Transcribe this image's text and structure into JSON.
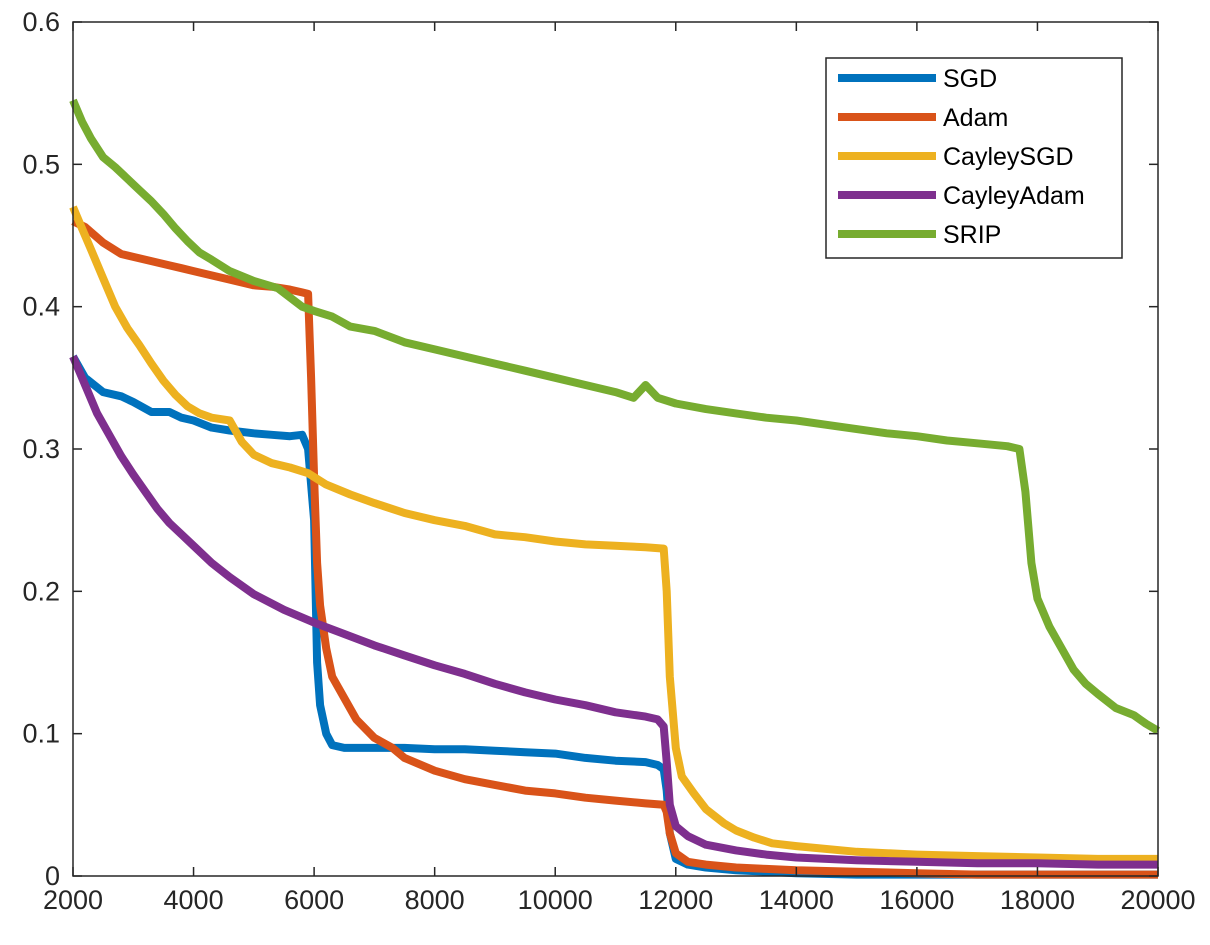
{
  "chart_data": {
    "type": "line",
    "title": "",
    "xlabel": "",
    "ylabel": "",
    "xlim": [
      2000,
      20000
    ],
    "ylim": [
      0,
      0.6
    ],
    "xticks": [
      2000,
      4000,
      6000,
      8000,
      10000,
      12000,
      14000,
      16000,
      18000,
      20000
    ],
    "xtick_labels": [
      "2000",
      "4000",
      "6000",
      "8000",
      "10000",
      "12000",
      "14000",
      "16000",
      "18000",
      "20000"
    ],
    "yticks": [
      0,
      0.1,
      0.2,
      0.3,
      0.4,
      0.5,
      0.6
    ],
    "ytick_labels": [
      "0",
      "0.1",
      "0.2",
      "0.3",
      "0.4",
      "0.5",
      "0.6"
    ],
    "grid": false,
    "legend_location": "top-right",
    "series": [
      {
        "name": "SGD",
        "color": "#0072BD",
        "x": [
          2000,
          2200,
          2500,
          2800,
          3000,
          3300,
          3600,
          3800,
          4000,
          4300,
          4600,
          5000,
          5300,
          5600,
          5800,
          5900,
          6000,
          6050,
          6100,
          6200,
          6300,
          6500,
          6800,
          7000,
          7500,
          8000,
          8500,
          9000,
          9500,
          10000,
          10500,
          11000,
          11500,
          11700,
          11800,
          11850,
          11900,
          12000,
          12200,
          12500,
          13000,
          13500,
          14000,
          15000,
          16000,
          17000,
          18000,
          19000,
          20000
        ],
        "values": [
          0.365,
          0.35,
          0.34,
          0.337,
          0.333,
          0.326,
          0.326,
          0.322,
          0.32,
          0.315,
          0.313,
          0.311,
          0.31,
          0.309,
          0.31,
          0.3,
          0.25,
          0.15,
          0.12,
          0.1,
          0.092,
          0.09,
          0.09,
          0.09,
          0.09,
          0.089,
          0.089,
          0.088,
          0.087,
          0.086,
          0.083,
          0.081,
          0.08,
          0.078,
          0.075,
          0.06,
          0.03,
          0.012,
          0.008,
          0.006,
          0.004,
          0.003,
          0.002,
          0.001,
          0.001,
          0.001,
          0.001,
          0.001,
          0.001
        ]
      },
      {
        "name": "Adam",
        "color": "#D95319",
        "x": [
          2000,
          2200,
          2500,
          2800,
          3000,
          3300,
          3600,
          3800,
          4000,
          4300,
          4600,
          5000,
          5300,
          5600,
          5800,
          5900,
          5950,
          6000,
          6050,
          6100,
          6200,
          6300,
          6500,
          6700,
          7000,
          7300,
          7500,
          8000,
          8500,
          9000,
          9500,
          10000,
          10500,
          11000,
          11500,
          11800,
          11850,
          11900,
          12000,
          12200,
          12500,
          13000,
          13500,
          14000,
          15000,
          16000,
          17000,
          18000,
          19000,
          20000
        ],
        "values": [
          0.46,
          0.456,
          0.445,
          0.437,
          0.435,
          0.432,
          0.429,
          0.427,
          0.425,
          0.422,
          0.419,
          0.415,
          0.414,
          0.412,
          0.41,
          0.409,
          0.35,
          0.28,
          0.22,
          0.19,
          0.16,
          0.14,
          0.125,
          0.11,
          0.097,
          0.09,
          0.083,
          0.074,
          0.068,
          0.064,
          0.06,
          0.058,
          0.055,
          0.053,
          0.051,
          0.05,
          0.045,
          0.03,
          0.016,
          0.01,
          0.008,
          0.006,
          0.005,
          0.004,
          0.003,
          0.002,
          0.001,
          0.001,
          0.001,
          0.001
        ]
      },
      {
        "name": "CayleySGD",
        "color": "#EDB120",
        "x": [
          2000,
          2150,
          2300,
          2500,
          2700,
          2900,
          3100,
          3300,
          3500,
          3700,
          3900,
          4100,
          4300,
          4600,
          4800,
          5000,
          5300,
          5600,
          5900,
          6200,
          6600,
          7000,
          7500,
          8000,
          8500,
          9000,
          9500,
          10000,
          10500,
          11000,
          11500,
          11800,
          11850,
          11900,
          12000,
          12100,
          12300,
          12500,
          12800,
          13000,
          13300,
          13600,
          14000,
          15000,
          16000,
          17000,
          18000,
          19000,
          20000
        ],
        "values": [
          0.47,
          0.455,
          0.44,
          0.42,
          0.4,
          0.385,
          0.373,
          0.36,
          0.348,
          0.338,
          0.33,
          0.325,
          0.322,
          0.32,
          0.305,
          0.296,
          0.29,
          0.287,
          0.283,
          0.275,
          0.268,
          0.262,
          0.255,
          0.25,
          0.246,
          0.24,
          0.238,
          0.235,
          0.233,
          0.232,
          0.231,
          0.23,
          0.2,
          0.14,
          0.09,
          0.07,
          0.058,
          0.047,
          0.037,
          0.032,
          0.027,
          0.023,
          0.021,
          0.017,
          0.015,
          0.014,
          0.013,
          0.012,
          0.012
        ]
      },
      {
        "name": "CayleyAdam",
        "color": "#7E2F8E",
        "x": [
          2000,
          2200,
          2400,
          2600,
          2800,
          3000,
          3200,
          3400,
          3600,
          3800,
          4000,
          4300,
          4600,
          5000,
          5500,
          6000,
          6500,
          7000,
          7500,
          8000,
          8500,
          9000,
          9500,
          10000,
          10500,
          11000,
          11500,
          11700,
          11800,
          11850,
          11900,
          12000,
          12200,
          12500,
          13000,
          13500,
          14000,
          15000,
          16000,
          17000,
          18000,
          19000,
          20000
        ],
        "values": [
          0.365,
          0.345,
          0.325,
          0.31,
          0.295,
          0.282,
          0.27,
          0.258,
          0.248,
          0.24,
          0.232,
          0.22,
          0.21,
          0.198,
          0.187,
          0.178,
          0.17,
          0.162,
          0.155,
          0.148,
          0.142,
          0.135,
          0.129,
          0.124,
          0.12,
          0.115,
          0.112,
          0.11,
          0.105,
          0.08,
          0.05,
          0.035,
          0.028,
          0.022,
          0.018,
          0.015,
          0.013,
          0.011,
          0.01,
          0.009,
          0.009,
          0.008,
          0.008
        ]
      },
      {
        "name": "SRIP",
        "color": "#77AC30",
        "x": [
          2000,
          2150,
          2300,
          2500,
          2700,
          2900,
          3100,
          3300,
          3500,
          3700,
          3900,
          4100,
          4300,
          4600,
          5000,
          5400,
          5800,
          6000,
          6300,
          6600,
          7000,
          7500,
          8000,
          8500,
          9000,
          9500,
          10000,
          10500,
          11000,
          11300,
          11500,
          11700,
          12000,
          12500,
          13000,
          13500,
          14000,
          14500,
          15000,
          15500,
          16000,
          16500,
          17000,
          17500,
          17700,
          17800,
          17900,
          18000,
          18200,
          18400,
          18600,
          18800,
          19000,
          19300,
          19600,
          19800,
          20000
        ],
        "values": [
          0.545,
          0.53,
          0.518,
          0.505,
          0.498,
          0.49,
          0.482,
          0.474,
          0.465,
          0.455,
          0.446,
          0.438,
          0.433,
          0.425,
          0.418,
          0.413,
          0.4,
          0.397,
          0.393,
          0.386,
          0.383,
          0.375,
          0.37,
          0.365,
          0.36,
          0.355,
          0.35,
          0.345,
          0.34,
          0.336,
          0.345,
          0.336,
          0.332,
          0.328,
          0.325,
          0.322,
          0.32,
          0.317,
          0.314,
          0.311,
          0.309,
          0.306,
          0.304,
          0.302,
          0.3,
          0.27,
          0.22,
          0.195,
          0.175,
          0.16,
          0.145,
          0.135,
          0.128,
          0.118,
          0.113,
          0.107,
          0.102
        ]
      }
    ]
  }
}
